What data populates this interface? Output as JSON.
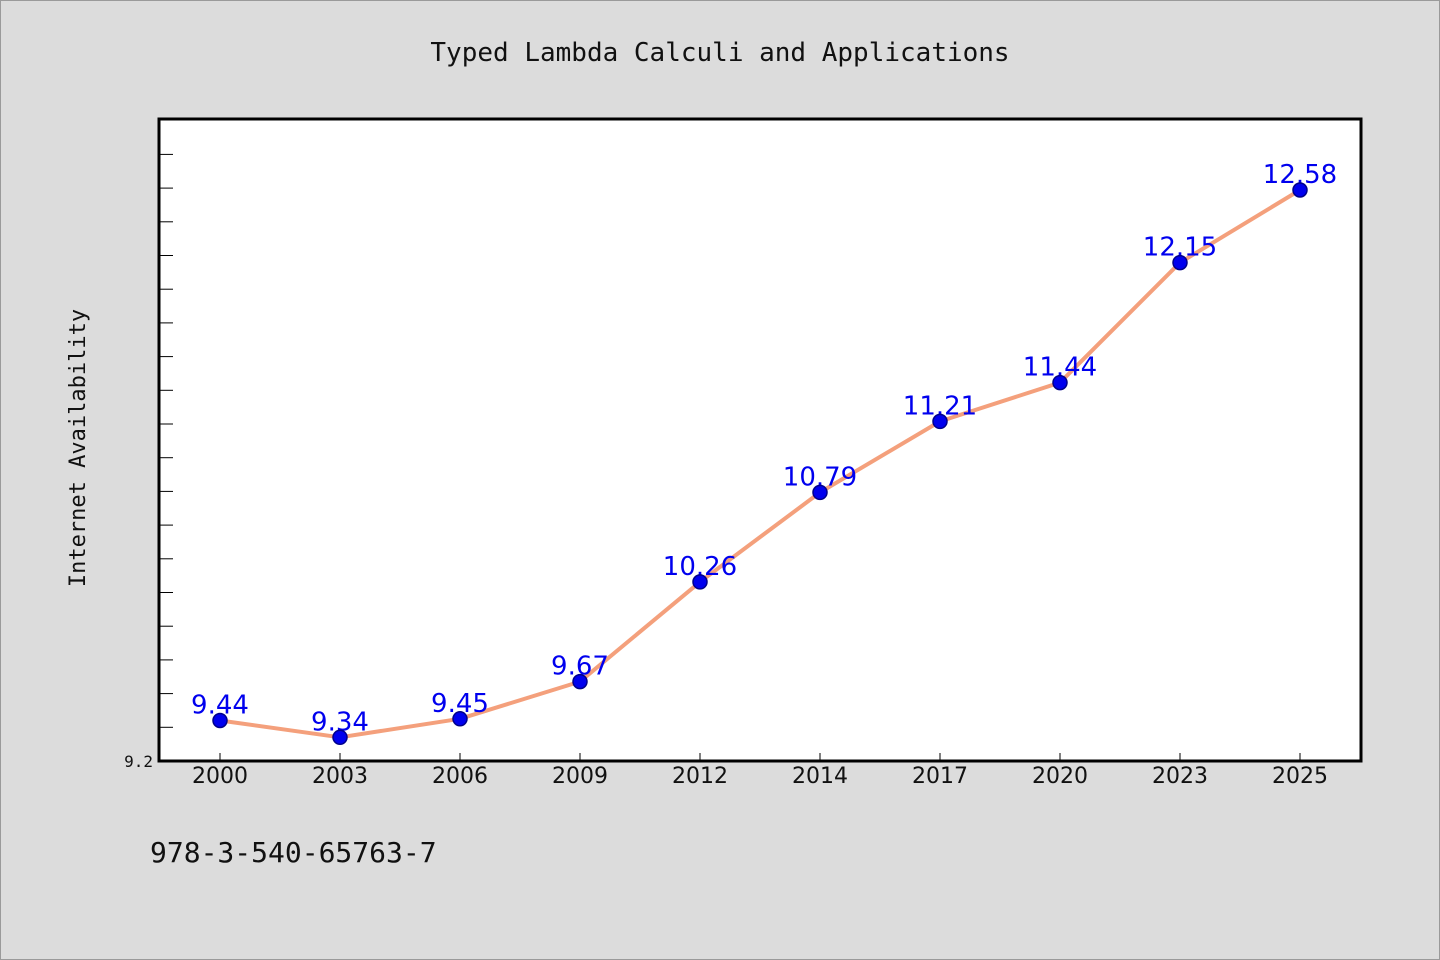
{
  "chart_data": {
    "type": "line",
    "title": "Typed Lambda Calculi and Applications",
    "xlabel": "",
    "ylabel": "Internet Availability",
    "categories": [
      "2000",
      "2003",
      "2006",
      "2009",
      "2012",
      "2014",
      "2017",
      "2020",
      "2023",
      "2025"
    ],
    "series": [
      {
        "values": [
          9.44,
          9.34,
          9.45,
          9.67,
          10.26,
          10.79,
          11.21,
          11.44,
          12.15,
          12.58
        ]
      }
    ],
    "data_labels": [
      "9.44",
      "9.34",
      "9.45",
      "9.67",
      "10.26",
      "10.79",
      "11.21",
      "11.44",
      "12.15",
      "12.58"
    ],
    "y_tick_labels": [
      "9.2"
    ],
    "ylim": [
      9.2,
      13.0
    ],
    "grid": false,
    "legend": "none",
    "colors": {
      "line": "#f4a07c",
      "marker_fill": "#0000ee",
      "marker_stroke": "#00008b",
      "data_label": "#0000ee",
      "plot_background": "#ffffff",
      "page_background": "#dcdcdc"
    }
  },
  "footer": {
    "isbn": "978-3-540-65763-7"
  }
}
